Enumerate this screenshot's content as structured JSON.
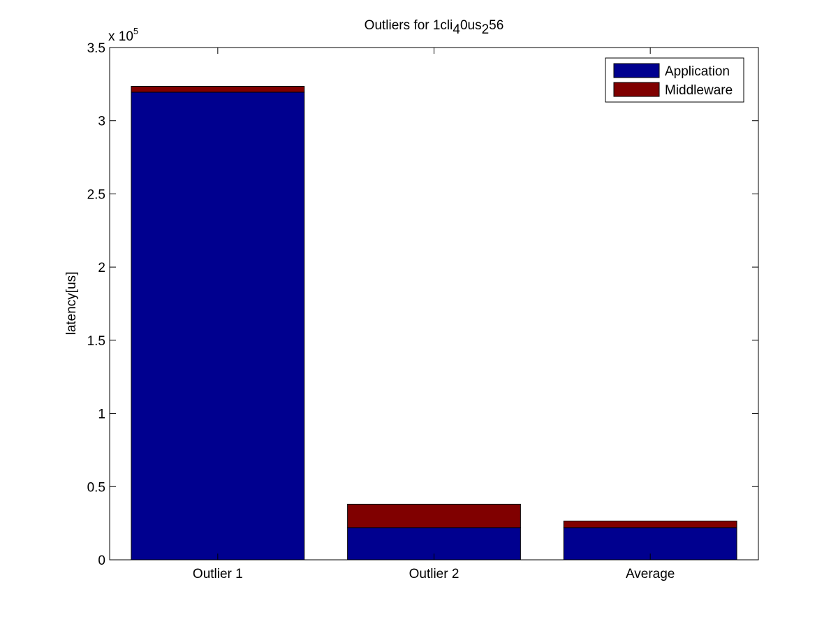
{
  "chart_data": {
    "type": "bar",
    "stacked": true,
    "title": {
      "parts": [
        {
          "text": "Outliers for 1cli",
          "sub": false
        },
        {
          "text": "4",
          "sub": true
        },
        {
          "text": "0us",
          "sub": false
        },
        {
          "text": "2",
          "sub": true
        },
        {
          "text": "56",
          "sub": false
        }
      ]
    },
    "ylabel": "latency[us]",
    "xlabel": "",
    "y_exponent_label": {
      "base": "x 10",
      "exponent": "5"
    },
    "ylim": [
      0,
      350000
    ],
    "y_ticks": [
      0,
      50000,
      100000,
      150000,
      200000,
      250000,
      300000,
      350000
    ],
    "y_tick_labels": [
      "0",
      "0.5",
      "1",
      "1.5",
      "2",
      "2.5",
      "3",
      "3.5"
    ],
    "categories": [
      "Outlier 1",
      "Outlier 2",
      "Average"
    ],
    "series": [
      {
        "name": "Application",
        "color": "#00008f",
        "values": [
          319500,
          22000,
          22000
        ]
      },
      {
        "name": "Middleware",
        "color": "#800000",
        "values": [
          4000,
          16000,
          4500
        ]
      }
    ],
    "legend_position": "top-right",
    "grid": false
  }
}
